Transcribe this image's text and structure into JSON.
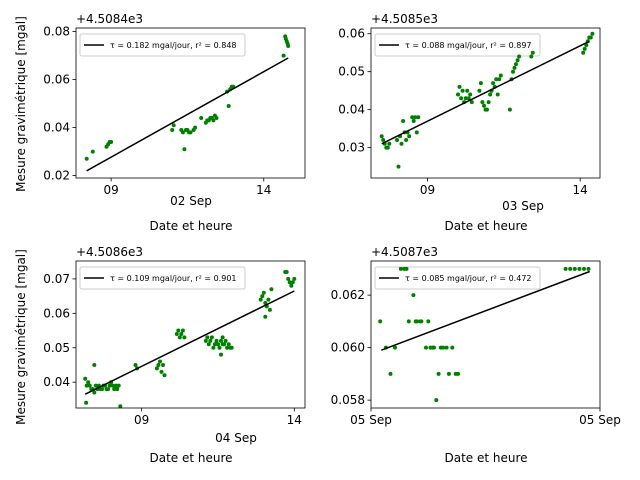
{
  "colors": {
    "points": "#008000",
    "fit": "#000000",
    "axes": "#000000",
    "legend_border": "#cccccc"
  },
  "chart_data": [
    {
      "type": "scatter",
      "offset_text": "+4.5084e3",
      "xlabel": "Date et heure",
      "ylabel": "Mesure gravimétrique [mgal]",
      "date_label": "02 Sep",
      "x_ticks": [
        {
          "x": 9,
          "label": "09"
        },
        {
          "x": 14,
          "label": "14"
        }
      ],
      "xlim": [
        7.85,
        15.35
      ],
      "ylim": [
        0.019,
        0.0815
      ],
      "y_ticks": [
        {
          "y": 0.02,
          "label": "0.02"
        },
        {
          "y": 0.04,
          "label": "0.04"
        },
        {
          "y": 0.06,
          "label": "0.06"
        },
        {
          "y": 0.08,
          "label": "0.08"
        }
      ],
      "legend": "τ = 0.182 mgal/jour, r² = 0.848",
      "fit_line": {
        "x": [
          8.2,
          14.8
        ],
        "y": [
          0.022,
          0.069
        ]
      },
      "points": {
        "x": [
          8.2,
          8.4,
          8.85,
          8.9,
          8.95,
          9.0,
          11.0,
          11.05,
          11.3,
          11.35,
          11.4,
          11.45,
          11.5,
          11.55,
          11.6,
          11.7,
          11.75,
          11.95,
          12.1,
          12.15,
          12.2,
          12.25,
          12.3,
          12.35,
          12.4,
          12.45,
          12.8,
          12.85,
          12.9,
          12.95,
          13.0,
          14.65,
          14.7,
          14.72,
          14.75,
          14.78,
          14.8
        ],
        "y": [
          0.027,
          0.03,
          0.032,
          0.033,
          0.034,
          0.034,
          0.039,
          0.041,
          0.039,
          0.038,
          0.031,
          0.039,
          0.039,
          0.038,
          0.038,
          0.039,
          0.04,
          0.044,
          0.042,
          0.043,
          0.043,
          0.044,
          0.044,
          0.043,
          0.045,
          0.044,
          0.055,
          0.049,
          0.056,
          0.057,
          0.057,
          0.07,
          0.078,
          0.077,
          0.076,
          0.075,
          0.074
        ]
      }
    },
    {
      "type": "scatter",
      "offset_text": "+4.5085e3",
      "xlabel": "Date et heure",
      "ylabel": "",
      "date_label": "03 Sep",
      "x_ticks": [
        {
          "x": 9,
          "label": "09"
        },
        {
          "x": 14,
          "label": "14"
        }
      ],
      "xlim": [
        7.15,
        14.65
      ],
      "ylim": [
        0.022,
        0.0615
      ],
      "y_ticks": [
        {
          "y": 0.03,
          "label": "0.03"
        },
        {
          "y": 0.04,
          "label": "0.04"
        },
        {
          "y": 0.05,
          "label": "0.05"
        },
        {
          "y": 0.06,
          "label": "0.06"
        }
      ],
      "legend": "τ = 0.088 mgal/jour, r² = 0.897",
      "fit_line": {
        "x": [
          7.5,
          14.3
        ],
        "y": [
          0.031,
          0.058
        ]
      },
      "points": {
        "x": [
          7.5,
          7.55,
          7.6,
          7.65,
          7.7,
          7.75,
          8.0,
          8.05,
          8.1,
          8.15,
          8.2,
          8.25,
          8.3,
          8.35,
          8.4,
          8.5,
          8.55,
          8.6,
          8.65,
          8.7,
          10.0,
          10.05,
          10.1,
          10.15,
          10.2,
          10.25,
          10.3,
          10.35,
          10.4,
          10.45,
          10.7,
          10.75,
          10.8,
          10.85,
          10.9,
          10.95,
          11.0,
          11.05,
          11.1,
          11.15,
          11.2,
          11.25,
          11.3,
          11.35,
          11.4,
          11.7,
          11.75,
          11.8,
          11.85,
          11.9,
          11.95,
          12.0,
          12.4,
          12.45,
          14.1,
          14.15,
          14.2,
          14.25,
          14.3,
          14.35,
          14.4
        ],
        "y": [
          0.033,
          0.032,
          0.031,
          0.03,
          0.03,
          0.031,
          0.032,
          0.025,
          0.033,
          0.031,
          0.037,
          0.034,
          0.032,
          0.034,
          0.033,
          0.038,
          0.037,
          0.038,
          0.034,
          0.038,
          0.044,
          0.046,
          0.043,
          0.045,
          0.042,
          0.043,
          0.045,
          0.043,
          0.044,
          0.042,
          0.045,
          0.047,
          0.042,
          0.041,
          0.04,
          0.04,
          0.042,
          0.044,
          0.045,
          0.047,
          0.046,
          0.048,
          0.044,
          0.048,
          0.049,
          0.04,
          0.048,
          0.05,
          0.051,
          0.052,
          0.053,
          0.054,
          0.054,
          0.055,
          0.055,
          0.056,
          0.057,
          0.058,
          0.059,
          0.059,
          0.06
        ]
      }
    },
    {
      "type": "scatter",
      "offset_text": "+4.5086e3",
      "xlabel": "Date et heure",
      "ylabel": "Mesure gravimétrique [mgal]",
      "date_label": "04 Sep",
      "x_ticks": [
        {
          "x": 9,
          "label": "09"
        },
        {
          "x": 14,
          "label": "14"
        }
      ],
      "xlim": [
        6.85,
        14.35
      ],
      "ylim": [
        0.0325,
        0.0752
      ],
      "y_ticks": [
        {
          "y": 0.04,
          "label": "0.04"
        },
        {
          "y": 0.05,
          "label": "0.05"
        },
        {
          "y": 0.06,
          "label": "0.06"
        },
        {
          "y": 0.07,
          "label": "0.07"
        }
      ],
      "legend": "τ = 0.109 mgal/jour, r² = 0.901",
      "fit_line": {
        "x": [
          7.15,
          14.0
        ],
        "y": [
          0.0365,
          0.0665
        ]
      },
      "points": {
        "x": [
          7.15,
          7.2,
          7.25,
          7.3,
          7.35,
          7.4,
          7.45,
          7.5,
          7.55,
          7.6,
          7.65,
          7.7,
          7.75,
          7.8,
          7.85,
          7.9,
          7.95,
          8.0,
          8.05,
          8.1,
          8.15,
          8.2,
          8.25,
          7.18,
          7.45,
          8.3,
          8.8,
          8.85,
          9.5,
          9.55,
          9.6,
          9.65,
          9.7,
          9.75,
          10.15,
          10.2,
          10.25,
          10.3,
          10.35,
          10.4,
          11.1,
          11.15,
          11.2,
          11.25,
          11.3,
          11.35,
          11.4,
          11.45,
          11.5,
          11.55,
          11.6,
          11.65,
          11.7,
          11.75,
          11.8,
          11.85,
          11.9,
          11.95,
          11.6,
          11.65,
          12.9,
          12.95,
          13.0,
          13.05,
          13.1,
          13.15,
          13.2,
          13.25,
          13.05,
          13.7,
          13.75,
          13.8,
          13.85,
          13.9,
          13.95,
          14.0
        ],
        "y": [
          0.041,
          0.039,
          0.04,
          0.039,
          0.038,
          0.038,
          0.037,
          0.039,
          0.038,
          0.039,
          0.038,
          0.038,
          0.039,
          0.039,
          0.038,
          0.038,
          0.039,
          0.04,
          0.039,
          0.038,
          0.039,
          0.038,
          0.039,
          0.034,
          0.045,
          0.033,
          0.045,
          0.044,
          0.044,
          0.045,
          0.046,
          0.043,
          0.045,
          0.042,
          0.054,
          0.055,
          0.053,
          0.054,
          0.055,
          0.053,
          0.052,
          0.053,
          0.051,
          0.052,
          0.053,
          0.05,
          0.051,
          0.052,
          0.051,
          0.05,
          0.052,
          0.051,
          0.051,
          0.052,
          0.05,
          0.051,
          0.05,
          0.05,
          0.048,
          0.053,
          0.064,
          0.065,
          0.066,
          0.063,
          0.062,
          0.064,
          0.061,
          0.067,
          0.059,
          0.072,
          0.072,
          0.07,
          0.069,
          0.068,
          0.069,
          0.07
        ]
      }
    },
    {
      "type": "scatter",
      "offset_text": "+4.5087e3",
      "xlabel": "Date et heure",
      "ylabel": "",
      "date_label": "",
      "x_ticks": [
        {
          "x": 0,
          "label": "05 Sep"
        },
        {
          "x": 1,
          "label": "05 Sep"
        }
      ],
      "xlim": [
        0,
        1
      ],
      "ylim": [
        0.0577,
        0.0633
      ],
      "y_ticks": [
        {
          "y": 0.058,
          "label": "0.058"
        },
        {
          "y": 0.06,
          "label": "0.060"
        },
        {
          "y": 0.062,
          "label": "0.062"
        }
      ],
      "legend": "τ = 0.085 mgal/jour, r² = 0.472",
      "fit_line": {
        "x": [
          0.045,
          0.955
        ],
        "y": [
          0.0599,
          0.0629
        ]
      },
      "points": {
        "x": [
          0.04,
          0.065,
          0.085,
          0.105,
          0.13,
          0.145,
          0.155,
          0.165,
          0.185,
          0.195,
          0.2,
          0.215,
          0.22,
          0.24,
          0.25,
          0.26,
          0.27,
          0.275,
          0.285,
          0.295,
          0.305,
          0.315,
          0.33,
          0.34,
          0.355,
          0.37,
          0.38,
          0.85,
          0.87,
          0.89,
          0.91,
          0.93,
          0.95
        ],
        "y": [
          0.061,
          0.06,
          0.059,
          0.06,
          0.063,
          0.063,
          0.063,
          0.061,
          0.062,
          0.061,
          0.061,
          0.061,
          0.061,
          0.06,
          0.061,
          0.06,
          0.06,
          0.06,
          0.058,
          0.059,
          0.06,
          0.06,
          0.06,
          0.059,
          0.06,
          0.059,
          0.059,
          0.063,
          0.063,
          0.063,
          0.063,
          0.063,
          0.063
        ]
      }
    }
  ]
}
